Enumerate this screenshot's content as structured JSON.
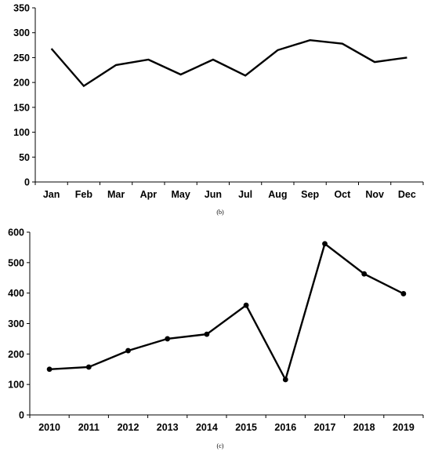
{
  "chart_data": [
    {
      "type": "line",
      "title": "",
      "xlabel": "",
      "ylabel": "",
      "caption": "(b)",
      "categories": [
        "Jan",
        "Feb",
        "Mar",
        "Apr",
        "May",
        "Jun",
        "Jul",
        "Aug",
        "Sep",
        "Oct",
        "Nov",
        "Dec"
      ],
      "values": [
        268,
        193,
        235,
        246,
        216,
        246,
        214,
        265,
        285,
        278,
        241,
        250
      ],
      "ylim": [
        0,
        350
      ],
      "yticks": [
        0,
        50,
        100,
        150,
        200,
        250,
        300,
        350
      ],
      "markers": false,
      "grid": false,
      "legend": "none"
    },
    {
      "type": "line",
      "title": "",
      "xlabel": "",
      "ylabel": "",
      "caption": "(c)",
      "categories": [
        "2010",
        "2011",
        "2012",
        "2013",
        "2014",
        "2015",
        "2016",
        "2017",
        "2018",
        "2019"
      ],
      "values": [
        150,
        157,
        211,
        250,
        265,
        360,
        116,
        562,
        463,
        398
      ],
      "ylim": [
        0,
        600
      ],
      "yticks": [
        0,
        100,
        200,
        300,
        400,
        500,
        600
      ],
      "markers": true,
      "grid": false,
      "legend": "none"
    }
  ]
}
